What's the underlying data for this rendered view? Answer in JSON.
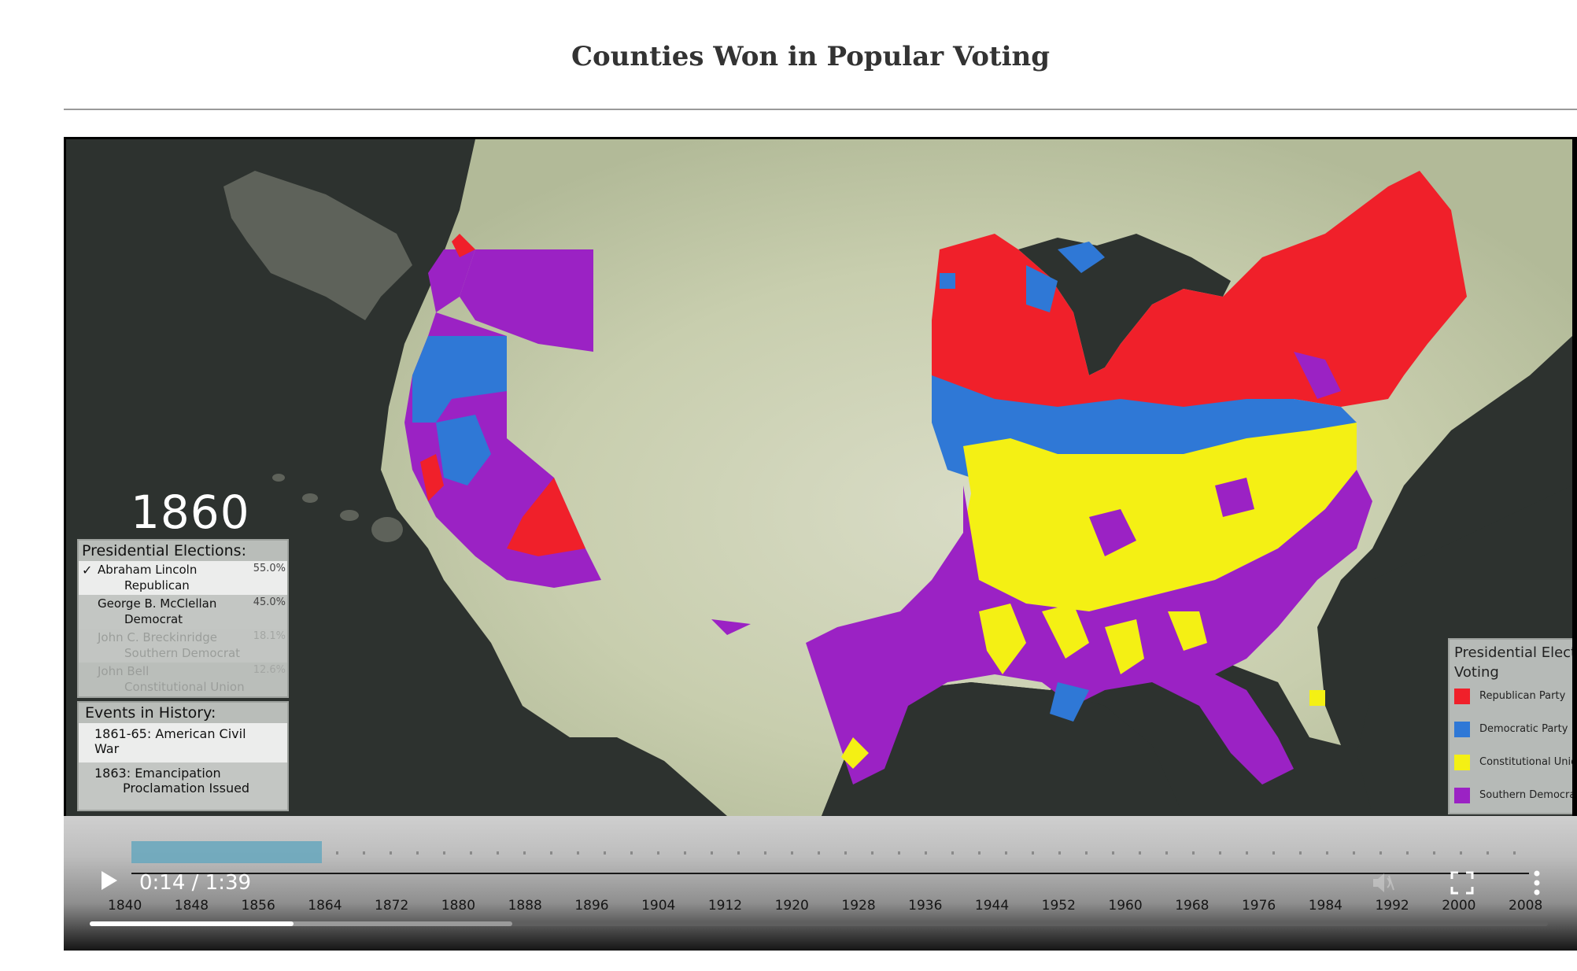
{
  "page": {
    "title": "Counties Won in Popular Voting"
  },
  "overlay": {
    "year": "1860",
    "elections": {
      "header": "Presidential Elections:",
      "candidates": [
        {
          "name": "Abraham Lincoln",
          "party": "Republican",
          "pct": "55.0%",
          "winner": true
        },
        {
          "name": "George B. McClellan",
          "party": "Democrat",
          "pct": "45.0%",
          "winner": false
        },
        {
          "name": "John C. Breckinridge",
          "party": "Southern Democrat",
          "pct": "18.1%",
          "winner": false
        },
        {
          "name": "John Bell",
          "party": "Constitutional Union",
          "pct": "12.6%",
          "winner": false
        }
      ]
    },
    "events": {
      "header": "Events in History:",
      "items": [
        {
          "line1": "1861-65: American Civil War",
          "line2": ""
        },
        {
          "line1": "1863: Emancipation",
          "line2": "Proclamation Issued"
        }
      ]
    },
    "legend": {
      "title": "Presidential Election Voting",
      "items": [
        {
          "label": "Republican Party",
          "color": "#f0202a"
        },
        {
          "label": "Democratic Party",
          "color": "#2f78d6"
        },
        {
          "label": "Constitutional Union Party",
          "color": "#f4f014"
        },
        {
          "label": "Southern Democratic Party",
          "color": "#9b22c4"
        }
      ]
    },
    "check_mark": "✓"
  },
  "player": {
    "time": "0:14 / 1:39",
    "played_fraction": 0.14,
    "buffered_fraction": 0.29,
    "icons": {
      "play": "play-icon",
      "volume": "volume-muted-icon",
      "fullscreen": "fullscreen-icon",
      "more": "more-vert-icon"
    },
    "timeline_years": [
      "1840",
      "1848",
      "1856",
      "1864",
      "1872",
      "1880",
      "1888",
      "1896",
      "1904",
      "1912",
      "1920",
      "1928",
      "1936",
      "1944",
      "1952",
      "1960",
      "1968",
      "1976",
      "1984",
      "1992",
      "2000",
      "2008"
    ]
  }
}
